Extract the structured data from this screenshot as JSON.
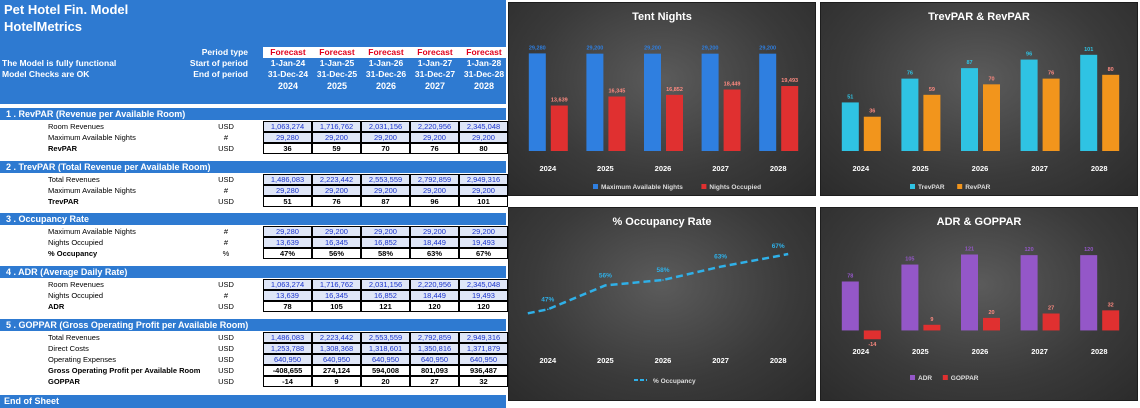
{
  "sheet": {
    "title1": "Pet Hotel Fin. Model",
    "title2": "HotelMetrics",
    "note1": "The Model is fully functional",
    "note2": "Model Checks are OK",
    "row_labels": {
      "period_type": "Period type",
      "start": "Start of period",
      "end": "End of period"
    },
    "periods": [
      {
        "type": "Forecast",
        "start": "1-Jan-24",
        "end": "31-Dec-24",
        "year": "2024"
      },
      {
        "type": "Forecast",
        "start": "1-Jan-25",
        "end": "31-Dec-25",
        "year": "2025"
      },
      {
        "type": "Forecast",
        "start": "1-Jan-26",
        "end": "31-Dec-26",
        "year": "2026"
      },
      {
        "type": "Forecast",
        "start": "1-Jan-27",
        "end": "31-Dec-27",
        "year": "2027"
      },
      {
        "type": "Forecast",
        "start": "1-Jan-28",
        "end": "31-Dec-28",
        "year": "2028"
      }
    ],
    "sections": [
      {
        "title": "1 . RevPAR (Revenue per Available Room)",
        "rows": [
          {
            "label": "Room Revenues",
            "unit": "USD",
            "kind": "in",
            "values": [
              "1,063,274",
              "1,716,762",
              "2,031,156",
              "2,220,956",
              "2,345,048"
            ]
          },
          {
            "label": "Maximum Available Nights",
            "unit": "#",
            "kind": "in",
            "values": [
              "29,280",
              "29,200",
              "29,200",
              "29,200",
              "29,200"
            ]
          },
          {
            "label": "RevPAR",
            "unit": "USD",
            "kind": "out",
            "values": [
              "36",
              "59",
              "70",
              "76",
              "80"
            ]
          }
        ]
      },
      {
        "title": "2 . TrevPAR (Total Revenue per Available Room)",
        "rows": [
          {
            "label": "Total Revenues",
            "unit": "USD",
            "kind": "in",
            "values": [
              "1,486,083",
              "2,223,442",
              "2,553,559",
              "2,792,859",
              "2,949,316"
            ]
          },
          {
            "label": "Maximum Available Nights",
            "unit": "#",
            "kind": "in",
            "values": [
              "29,280",
              "29,200",
              "29,200",
              "29,200",
              "29,200"
            ]
          },
          {
            "label": "TrevPAR",
            "unit": "USD",
            "kind": "out",
            "values": [
              "51",
              "76",
              "87",
              "96",
              "101"
            ]
          }
        ]
      },
      {
        "title": "3 . Occupancy Rate",
        "rows": [
          {
            "label": "Maximum Available Nights",
            "unit": "#",
            "kind": "in",
            "values": [
              "29,280",
              "29,200",
              "29,200",
              "29,200",
              "29,200"
            ]
          },
          {
            "label": "Nights Occupied",
            "unit": "#",
            "kind": "in",
            "values": [
              "13,639",
              "16,345",
              "16,852",
              "18,449",
              "19,493"
            ]
          },
          {
            "label": "% Occupancy",
            "unit": "%",
            "kind": "out",
            "values": [
              "47%",
              "56%",
              "58%",
              "63%",
              "67%"
            ]
          }
        ]
      },
      {
        "title": "4 . ADR (Average Daily Rate)",
        "rows": [
          {
            "label": "Room Revenues",
            "unit": "USD",
            "kind": "in",
            "values": [
              "1,063,274",
              "1,716,762",
              "2,031,156",
              "2,220,956",
              "2,345,048"
            ]
          },
          {
            "label": "Nights Occupied",
            "unit": "#",
            "kind": "in",
            "values": [
              "13,639",
              "16,345",
              "16,852",
              "18,449",
              "19,493"
            ]
          },
          {
            "label": "ADR",
            "unit": "USD",
            "kind": "out",
            "values": [
              "78",
              "105",
              "121",
              "120",
              "120"
            ]
          }
        ]
      },
      {
        "title": "5 . GOPPAR (Gross Operating Profit per Available Room)",
        "rows": [
          {
            "label": "Total Revenues",
            "unit": "USD",
            "kind": "in",
            "values": [
              "1,486,083",
              "2,223,442",
              "2,553,559",
              "2,792,859",
              "2,949,316"
            ]
          },
          {
            "label": "Direct Costs",
            "unit": "USD",
            "kind": "in",
            "values": [
              "1,253,788",
              "1,308,368",
              "1,318,601",
              "1,350,816",
              "1,371,879"
            ]
          },
          {
            "label": "Operating Expenses",
            "unit": "USD",
            "kind": "in",
            "values": [
              "640,950",
              "640,950",
              "640,950",
              "640,950",
              "640,950"
            ]
          },
          {
            "label": "Gross Operating Profit per Available Room",
            "unit": "USD",
            "kind": "out",
            "values": [
              "-408,655",
              "274,124",
              "594,008",
              "801,093",
              "936,487"
            ]
          },
          {
            "label": "GOPPAR",
            "unit": "USD",
            "kind": "out",
            "values": [
              "-14",
              "9",
              "20",
              "27",
              "32"
            ]
          }
        ]
      }
    ],
    "footer": "End of Sheet"
  },
  "chart_data": [
    {
      "type": "bar",
      "title": "Tent Nights",
      "categories": [
        "2024",
        "2025",
        "2026",
        "2027",
        "2028"
      ],
      "series": [
        {
          "name": "Maximum Available Nights",
          "values": [
            29280,
            29200,
            29200,
            29200,
            29200
          ],
          "color": "#2f7fe0"
        },
        {
          "name": "Nights Occupied",
          "values": [
            13639,
            16345,
            16852,
            18449,
            19493
          ],
          "color": "#e03030"
        }
      ],
      "labels": [
        [
          "29,280",
          "29,200",
          "29,200",
          "29,200",
          "29,200"
        ],
        [
          "13,639",
          "16,345",
          "16,852",
          "18,449",
          "19,493"
        ]
      ],
      "ylim": [
        0,
        30000
      ]
    },
    {
      "type": "bar",
      "title": "TrevPAR & RevPAR",
      "categories": [
        "2024",
        "2025",
        "2026",
        "2027",
        "2028"
      ],
      "series": [
        {
          "name": "TrevPAR",
          "values": [
            51,
            76,
            87,
            96,
            101
          ],
          "color": "#2fc3e3"
        },
        {
          "name": "RevPAR",
          "values": [
            36,
            59,
            70,
            76,
            80
          ],
          "color": "#f2951c"
        }
      ],
      "labels": [
        [
          "51",
          "76",
          "87",
          "96",
          "101"
        ],
        [
          "36",
          "59",
          "70",
          "76",
          "80"
        ]
      ],
      "ylim": [
        0,
        105
      ]
    },
    {
      "type": "line",
      "title": "% Occupancy Rate",
      "categories": [
        "2024",
        "2025",
        "2026",
        "2027",
        "2028"
      ],
      "series": [
        {
          "name": "% Occupancy",
          "values": [
            47,
            56,
            58,
            63,
            67
          ],
          "color": "#2fb0e8"
        }
      ],
      "labels": [
        [
          "47%",
          "56%",
          "58%",
          "63%",
          "67%"
        ]
      ],
      "ylim": [
        0,
        80
      ]
    },
    {
      "type": "bar",
      "title": "ADR & GOPPAR",
      "categories": [
        "2024",
        "2025",
        "2026",
        "2027",
        "2028"
      ],
      "series": [
        {
          "name": "ADR",
          "values": [
            78,
            105,
            121,
            120,
            120
          ],
          "color": "#9457c8"
        },
        {
          "name": "GOPPAR",
          "values": [
            -14,
            9,
            20,
            27,
            32
          ],
          "color": "#e03030"
        }
      ],
      "labels": [
        [
          "78",
          "105",
          "121",
          "120",
          "120"
        ],
        [
          "-14",
          "9",
          "20",
          "27",
          "32"
        ]
      ],
      "ylim": [
        -20,
        125
      ]
    }
  ]
}
